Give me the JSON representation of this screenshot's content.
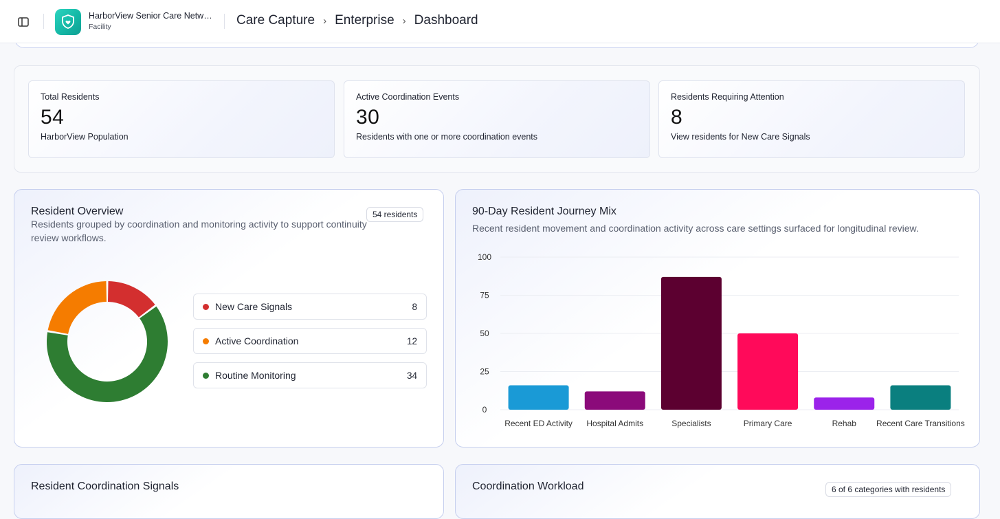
{
  "header": {
    "org_name": "HarborView Senior Care Netwo…",
    "org_type": "Facility",
    "breadcrumbs": [
      "Care Capture",
      "Enterprise",
      "Dashboard"
    ]
  },
  "stats": [
    {
      "label": "Total Residents",
      "value": "54",
      "sub": "HarborView Population"
    },
    {
      "label": "Active Coordination Events",
      "value": "30",
      "sub": "Residents with one or more coordination events"
    },
    {
      "label": "Residents Requiring Attention",
      "value": "8",
      "sub": "View residents for New Care Signals"
    }
  ],
  "overview": {
    "title": "Resident Overview",
    "subtitle": "Residents grouped by coordination and monitoring activity to support continuity review workflows.",
    "badge": "54 residents",
    "segments": [
      {
        "label": "New Care Signals",
        "count": 8,
        "color": "#d32f2f"
      },
      {
        "label": "Active Coordination",
        "count": 12,
        "color": "#f57c00"
      },
      {
        "label": "Routine Monitoring",
        "count": 34,
        "color": "#2e7d32"
      }
    ]
  },
  "journey": {
    "title": "90-Day Resident Journey Mix",
    "subtitle": "Recent resident movement and coordination activity across care settings surfaced for longitudinal review."
  },
  "chart_data": {
    "type": "bar",
    "categories": [
      "Recent ED Activity",
      "Hospital Admits",
      "Specialists",
      "Primary Care",
      "Rehab",
      "Recent Care Transitions"
    ],
    "values": [
      16,
      12,
      87,
      50,
      8,
      16
    ],
    "colors": [
      "#1a9ad6",
      "#8b0a7a",
      "#5c0030",
      "#ff0a5a",
      "#9b23ea",
      "#0a7f7f"
    ],
    "yticks": [
      0,
      25,
      50,
      75,
      100
    ],
    "ylim": [
      0,
      100
    ],
    "grid": true,
    "title": "",
    "xlabel": "",
    "ylabel": ""
  },
  "signals": {
    "title": "Resident Coordination Signals"
  },
  "workload": {
    "title": "Coordination Workload",
    "badge": "6 of 6 categories with residents"
  }
}
